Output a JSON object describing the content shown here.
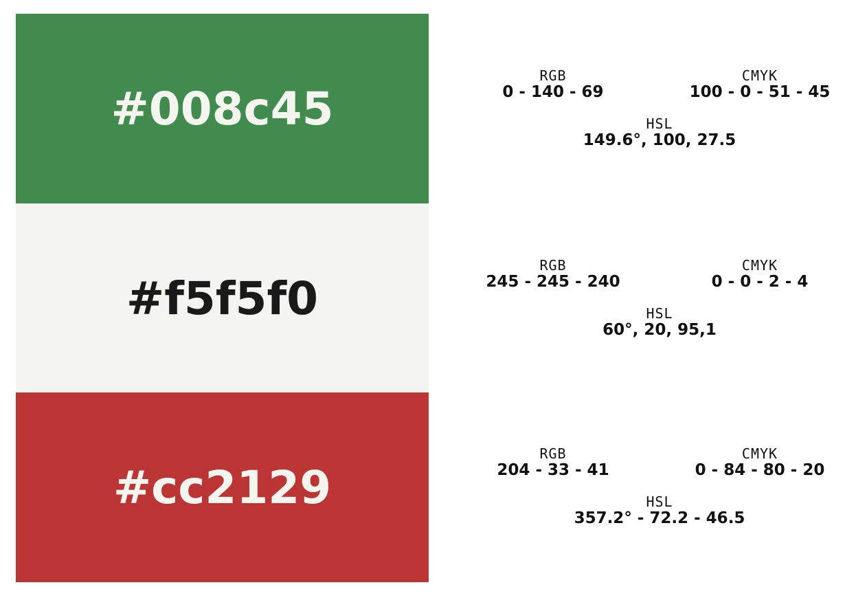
{
  "labels": {
    "rgb": "RGB",
    "cmyk": "CMYK",
    "hsl": "HSL"
  },
  "swatches": [
    {
      "hex": "#008c45",
      "bg_color": "#418b4e",
      "text_color": "#f5f5f0",
      "rgb": "0 - 140 - 69",
      "cmyk": "100 - 0 - 51 - 45",
      "hsl": "149.6°, 100, 27.5"
    },
    {
      "hex": "#f5f5f0",
      "bg_color": "#f4f5f0",
      "text_color": "#1a1a1a",
      "rgb": "245 - 245 - 240",
      "cmyk": "0 - 0 - 2 - 4",
      "hsl": "60°, 20, 95,1"
    },
    {
      "hex": "#cc2129",
      "bg_color": "#bb3534",
      "text_color": "#f5f5f0",
      "rgb": "204 - 33 - 41",
      "cmyk": "0 - 84 - 80 - 20",
      "hsl": "357.2° - 72.2 - 46.5"
    }
  ]
}
